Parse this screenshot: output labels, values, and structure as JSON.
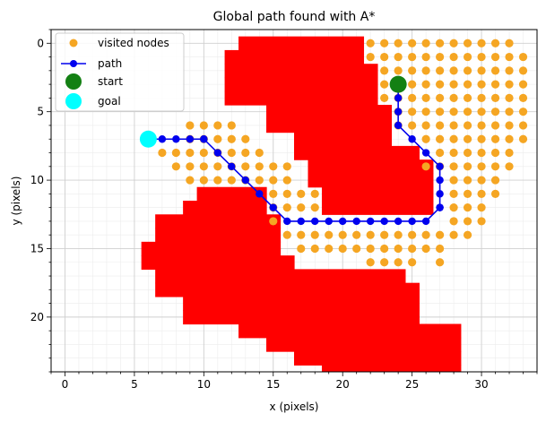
{
  "chart_data": {
    "type": "scatter",
    "title": "Global path found with A*",
    "xlabel": "x (pixels)",
    "ylabel": "y (pixels)",
    "xlim": [
      -1,
      34
    ],
    "ylim": [
      24,
      -1
    ],
    "y_inverted": true,
    "grid": true,
    "minor_grid": true,
    "x_ticks": [
      0,
      5,
      10,
      15,
      20,
      25,
      30
    ],
    "y_ticks": [
      0,
      5,
      10,
      15,
      20
    ],
    "legend_position": "upper-left",
    "legend": [
      {
        "label": "visited nodes",
        "marker": "dot",
        "color": "#f5a623"
      },
      {
        "label": "path",
        "marker": "line-dot",
        "color": "#0000ee"
      },
      {
        "label": "start",
        "marker": "big-dot",
        "color": "#138013"
      },
      {
        "label": "goal",
        "marker": "big-dot",
        "color": "#00ffff"
      }
    ],
    "obstacle": {
      "color": "#ff0000",
      "rows": [
        {
          "y": 0,
          "x": [
            13,
            21
          ]
        },
        {
          "y": 1,
          "x": [
            12,
            21
          ]
        },
        {
          "y": 2,
          "x": [
            12,
            22
          ]
        },
        {
          "y": 3,
          "x": [
            12,
            22
          ]
        },
        {
          "y": 4,
          "x": [
            12,
            22
          ]
        },
        {
          "y": 5,
          "x": [
            15,
            23
          ]
        },
        {
          "y": 6,
          "x": [
            15,
            23
          ]
        },
        {
          "y": 7,
          "x": [
            17,
            23
          ]
        },
        {
          "y": 8,
          "x": [
            17,
            25
          ]
        },
        {
          "y": 9,
          "x": [
            18,
            26
          ]
        },
        {
          "y": 10,
          "x": [
            18,
            26
          ]
        },
        {
          "y": 11,
          "x": [
            10,
            14
          ]
        },
        {
          "y": 11,
          "x": [
            19,
            26
          ]
        },
        {
          "y": 12,
          "x": [
            9,
            14
          ]
        },
        {
          "y": 12,
          "x": [
            19,
            26
          ]
        },
        {
          "y": 13,
          "x": [
            7,
            15
          ]
        },
        {
          "y": 14,
          "x": [
            7,
            15
          ]
        },
        {
          "y": 15,
          "x": [
            6,
            15
          ]
        },
        {
          "y": 16,
          "x": [
            6,
            16
          ]
        },
        {
          "y": 17,
          "x": [
            7,
            24
          ]
        },
        {
          "y": 18,
          "x": [
            7,
            25
          ]
        },
        {
          "y": 19,
          "x": [
            9,
            25
          ]
        },
        {
          "y": 20,
          "x": [
            9,
            25
          ]
        },
        {
          "y": 21,
          "x": [
            13,
            28
          ]
        },
        {
          "y": 22,
          "x": [
            15,
            28
          ]
        },
        {
          "y": 23,
          "x": [
            17,
            28
          ]
        },
        {
          "y": 24,
          "x": [
            19,
            28
          ]
        }
      ]
    },
    "visited_nodes": {
      "rows": [
        {
          "y": 0,
          "x": [
            22,
            23,
            24,
            25,
            26,
            27,
            28,
            29,
            30,
            31,
            32
          ]
        },
        {
          "y": 1,
          "x": [
            22,
            23,
            24,
            25,
            26,
            27,
            28,
            29,
            30,
            31,
            32,
            33
          ]
        },
        {
          "y": 2,
          "x": [
            23,
            24,
            25,
            26,
            27,
            28,
            29,
            30,
            31,
            32,
            33
          ]
        },
        {
          "y": 3,
          "x": [
            23,
            25,
            26,
            27,
            28,
            29,
            30,
            31,
            32,
            33
          ]
        },
        {
          "y": 4,
          "x": [
            23,
            24,
            25,
            26,
            27,
            28,
            29,
            30,
            31,
            32,
            33
          ]
        },
        {
          "y": 5,
          "x": [
            24,
            25,
            26,
            27,
            28,
            29,
            30,
            31,
            32,
            33
          ]
        },
        {
          "y": 6,
          "x": [
            9,
            10,
            11,
            12,
            24,
            25,
            26,
            27,
            28,
            29,
            30,
            31,
            32,
            33
          ]
        },
        {
          "y": 7,
          "x": [
            9,
            10,
            11,
            12,
            13,
            26,
            27,
            28,
            29,
            30,
            31,
            32,
            33
          ]
        },
        {
          "y": 8,
          "x": [
            7,
            8,
            9,
            10,
            11,
            12,
            13,
            14,
            27,
            28,
            29,
            30,
            31,
            32
          ]
        },
        {
          "y": 9,
          "x": [
            8,
            9,
            10,
            11,
            12,
            13,
            14,
            15,
            16,
            26,
            27,
            28,
            29,
            30,
            31,
            32
          ]
        },
        {
          "y": 10,
          "x": [
            9,
            10,
            11,
            12,
            13,
            14,
            15,
            16,
            28,
            29,
            30,
            31
          ]
        },
        {
          "y": 11,
          "x": [
            15,
            16,
            17,
            18,
            28,
            29,
            30,
            31
          ]
        },
        {
          "y": 12,
          "x": [
            15,
            16,
            17,
            18,
            28,
            29,
            30
          ]
        },
        {
          "y": 13,
          "x": [
            15,
            28,
            29,
            30
          ]
        },
        {
          "y": 14,
          "x": [
            16,
            17,
            18,
            19,
            20,
            21,
            22,
            23,
            24,
            25,
            26,
            27,
            28,
            29
          ]
        },
        {
          "y": 15,
          "x": [
            17,
            18,
            19,
            20,
            21,
            22,
            23,
            24,
            25,
            26,
            27
          ]
        },
        {
          "y": 16,
          "x": [
            22,
            23,
            24,
            25,
            27
          ]
        }
      ]
    },
    "path": {
      "x": [
        24,
        24,
        24,
        24,
        25,
        26,
        27,
        27,
        27,
        27,
        27,
        26,
        25,
        24,
        23,
        22,
        21,
        20,
        19,
        18,
        17,
        16,
        15,
        14,
        13,
        12,
        11,
        10,
        10,
        9,
        8,
        7,
        6
      ],
      "y": [
        3,
        4,
        5,
        6,
        7,
        8,
        9,
        10,
        11,
        12,
        12,
        13,
        13,
        13,
        13,
        13,
        13,
        13,
        13,
        13,
        13,
        13,
        12,
        11,
        10,
        9,
        8,
        7,
        7,
        7,
        7,
        7,
        7
      ]
    },
    "start": {
      "x": 24,
      "y": 3
    },
    "goal": {
      "x": 6,
      "y": 7
    }
  }
}
